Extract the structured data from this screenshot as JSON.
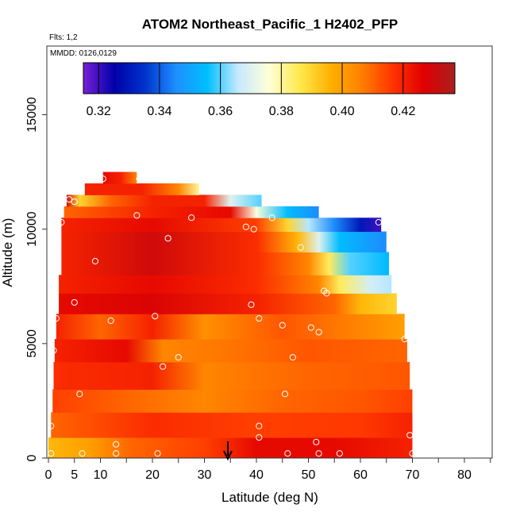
{
  "chart_data": {
    "type": "heatmap",
    "title": "ATOM2 Northeast_Pacific_1 H2402_PFP",
    "flights_label": "Flts: 1,2",
    "dates_label": "MMDD: 0126,0129",
    "xlabel": "Latitude (deg N)",
    "ylabel": "Altitude (m)",
    "xlim": [
      -1,
      85
    ],
    "ylim": [
      0,
      18000
    ],
    "x_ticks": [
      0,
      5,
      10,
      20,
      30,
      40,
      50,
      60,
      70,
      80
    ],
    "y_ticks": [
      0,
      5000,
      10000,
      15000
    ],
    "colorbar": {
      "range": [
        0.315,
        0.437
      ],
      "ticks": [
        0.32,
        0.34,
        0.36,
        0.38,
        0.4,
        0.42
      ],
      "tick_labels": [
        "0.32",
        "0.34",
        "0.36",
        "0.38",
        "0.40",
        "0.42"
      ],
      "colors": [
        "#7a1fd6",
        "#0000a8",
        "#0033cc",
        "#1e90ff",
        "#00bfff",
        "#c6e9ff",
        "#ffffd8",
        "#ffe94a",
        "#ffb000",
        "#ff7f00",
        "#ff3300",
        "#e00000",
        "#a82020"
      ]
    },
    "curtain_bands": [
      {
        "alt_bottom": 0,
        "alt_top": 900,
        "lat_start": 0,
        "lat_end": 70,
        "stops": [
          [
            0,
            0.395
          ],
          [
            8,
            0.4
          ],
          [
            16,
            0.41
          ],
          [
            30,
            0.415
          ],
          [
            40,
            0.425
          ],
          [
            55,
            0.425
          ],
          [
            70,
            0.42
          ]
        ]
      },
      {
        "alt_bottom": 900,
        "alt_top": 2000,
        "lat_start": 0.5,
        "lat_end": 70,
        "stops": [
          [
            0,
            0.41
          ],
          [
            20,
            0.418
          ],
          [
            40,
            0.415
          ],
          [
            60,
            0.416
          ],
          [
            70,
            0.42
          ]
        ]
      },
      {
        "alt_bottom": 2000,
        "alt_top": 3000,
        "lat_start": 0.8,
        "lat_end": 70,
        "stops": [
          [
            0,
            0.415
          ],
          [
            15,
            0.41
          ],
          [
            30,
            0.405
          ],
          [
            45,
            0.41
          ],
          [
            60,
            0.412
          ],
          [
            70,
            0.415
          ]
        ]
      },
      {
        "alt_bottom": 3000,
        "alt_top": 4200,
        "lat_start": 1,
        "lat_end": 69.5,
        "stops": [
          [
            0,
            0.418
          ],
          [
            20,
            0.42
          ],
          [
            30,
            0.405
          ],
          [
            40,
            0.408
          ],
          [
            50,
            0.41
          ],
          [
            70,
            0.412
          ]
        ]
      },
      {
        "alt_bottom": 4200,
        "alt_top": 5200,
        "lat_start": 1.2,
        "lat_end": 69,
        "stops": [
          [
            0,
            0.42
          ],
          [
            15,
            0.425
          ],
          [
            22,
            0.405
          ],
          [
            35,
            0.408
          ],
          [
            50,
            0.412
          ],
          [
            69,
            0.41
          ]
        ]
      },
      {
        "alt_bottom": 5200,
        "alt_top": 6300,
        "lat_start": 1.5,
        "lat_end": 68.5,
        "stops": [
          [
            0,
            0.42
          ],
          [
            10,
            0.41
          ],
          [
            20,
            0.42
          ],
          [
            30,
            0.403
          ],
          [
            45,
            0.412
          ],
          [
            60,
            0.405
          ],
          [
            68,
            0.4
          ]
        ]
      },
      {
        "alt_bottom": 6300,
        "alt_top": 7200,
        "lat_start": 2,
        "lat_end": 67,
        "stops": [
          [
            0,
            0.425
          ],
          [
            20,
            0.428
          ],
          [
            40,
            0.42
          ],
          [
            55,
            0.41
          ],
          [
            60,
            0.395
          ],
          [
            67,
            0.39
          ]
        ]
      },
      {
        "alt_bottom": 7200,
        "alt_top": 8000,
        "lat_start": 2,
        "lat_end": 66,
        "stops": [
          [
            0,
            0.42
          ],
          [
            20,
            0.425
          ],
          [
            40,
            0.418
          ],
          [
            52,
            0.405
          ],
          [
            56,
            0.385
          ],
          [
            62,
            0.368
          ],
          [
            66,
            0.365
          ]
        ]
      },
      {
        "alt_bottom": 8000,
        "alt_top": 9000,
        "lat_start": 2.5,
        "lat_end": 65.5,
        "stops": [
          [
            0,
            0.42
          ],
          [
            20,
            0.43
          ],
          [
            40,
            0.418
          ],
          [
            50,
            0.405
          ],
          [
            54,
            0.385
          ],
          [
            58,
            0.36
          ],
          [
            65,
            0.355
          ]
        ]
      },
      {
        "alt_bottom": 9000,
        "alt_top": 9900,
        "lat_start": 2.5,
        "lat_end": 65,
        "stops": [
          [
            0,
            0.42
          ],
          [
            20,
            0.43
          ],
          [
            40,
            0.418
          ],
          [
            48,
            0.395
          ],
          [
            52,
            0.37
          ],
          [
            56,
            0.355
          ],
          [
            65,
            0.345
          ]
        ]
      },
      {
        "alt_bottom": 9900,
        "alt_top": 10500,
        "lat_start": 2.5,
        "lat_end": 64,
        "stops": [
          [
            0,
            0.42
          ],
          [
            20,
            0.425
          ],
          [
            40,
            0.415
          ],
          [
            46,
            0.39
          ],
          [
            50,
            0.365
          ],
          [
            55,
            0.345
          ],
          [
            60,
            0.33
          ],
          [
            64,
            0.32
          ]
        ]
      },
      {
        "alt_bottom": 10500,
        "alt_top": 11000,
        "lat_start": 3,
        "lat_end": 52,
        "stops": [
          [
            3,
            0.41
          ],
          [
            20,
            0.42
          ],
          [
            35,
            0.425
          ],
          [
            40,
            0.375
          ],
          [
            46,
            0.355
          ],
          [
            52,
            0.345
          ]
        ]
      },
      {
        "alt_bottom": 11000,
        "alt_top": 11500,
        "lat_start": 3.5,
        "lat_end": 41,
        "stops": [
          [
            3.5,
            0.43
          ],
          [
            6,
            0.39
          ],
          [
            12,
            0.41
          ],
          [
            20,
            0.42
          ],
          [
            30,
            0.42
          ],
          [
            35,
            0.37
          ],
          [
            41,
            0.36
          ]
        ]
      },
      {
        "alt_bottom": 11500,
        "alt_top": 12000,
        "lat_start": 7,
        "lat_end": 29,
        "stops": [
          [
            7,
            0.42
          ],
          [
            18,
            0.42
          ],
          [
            25,
            0.405
          ],
          [
            29,
            0.38
          ]
        ]
      },
      {
        "alt_bottom": 12000,
        "alt_top": 12500,
        "lat_start": 10.5,
        "lat_end": 17,
        "stops": [
          [
            10.5,
            0.425
          ],
          [
            14,
            0.42
          ],
          [
            17,
            0.405
          ]
        ]
      }
    ],
    "sample_points": [
      [
        0.5,
        200
      ],
      [
        0.5,
        1400
      ],
      [
        1,
        4700
      ],
      [
        1.5,
        6100
      ],
      [
        2.5,
        10300
      ],
      [
        4,
        11300
      ],
      [
        5,
        11200
      ],
      [
        6.5,
        200
      ],
      [
        6,
        2800
      ],
      [
        5,
        6800
      ],
      [
        9,
        8600
      ],
      [
        10.5,
        12200
      ],
      [
        13,
        600
      ],
      [
        13,
        200
      ],
      [
        12,
        6000
      ],
      [
        17.5,
        12200
      ],
      [
        17,
        10600
      ],
      [
        20.5,
        6200
      ],
      [
        21,
        200
      ],
      [
        22,
        4000
      ],
      [
        23,
        9600
      ],
      [
        25,
        4400
      ],
      [
        27.5,
        10500
      ],
      [
        38,
        10100
      ],
      [
        39.5,
        10000
      ],
      [
        39,
        6700
      ],
      [
        40.5,
        6100
      ],
      [
        40.5,
        1400
      ],
      [
        40.5,
        900
      ],
      [
        43,
        10500
      ],
      [
        45,
        5800
      ],
      [
        45.5,
        2800
      ],
      [
        46,
        200
      ],
      [
        47,
        4400
      ],
      [
        48.5,
        9200
      ],
      [
        50.5,
        5700
      ],
      [
        51.5,
        700
      ],
      [
        52,
        200
      ],
      [
        52,
        5500
      ],
      [
        53,
        7300
      ],
      [
        53.5,
        7200
      ],
      [
        56,
        200
      ],
      [
        63.5,
        10300
      ],
      [
        68.5,
        5200
      ],
      [
        69.5,
        1000
      ],
      [
        70,
        200
      ]
    ],
    "arrow_lat": 34.5
  }
}
